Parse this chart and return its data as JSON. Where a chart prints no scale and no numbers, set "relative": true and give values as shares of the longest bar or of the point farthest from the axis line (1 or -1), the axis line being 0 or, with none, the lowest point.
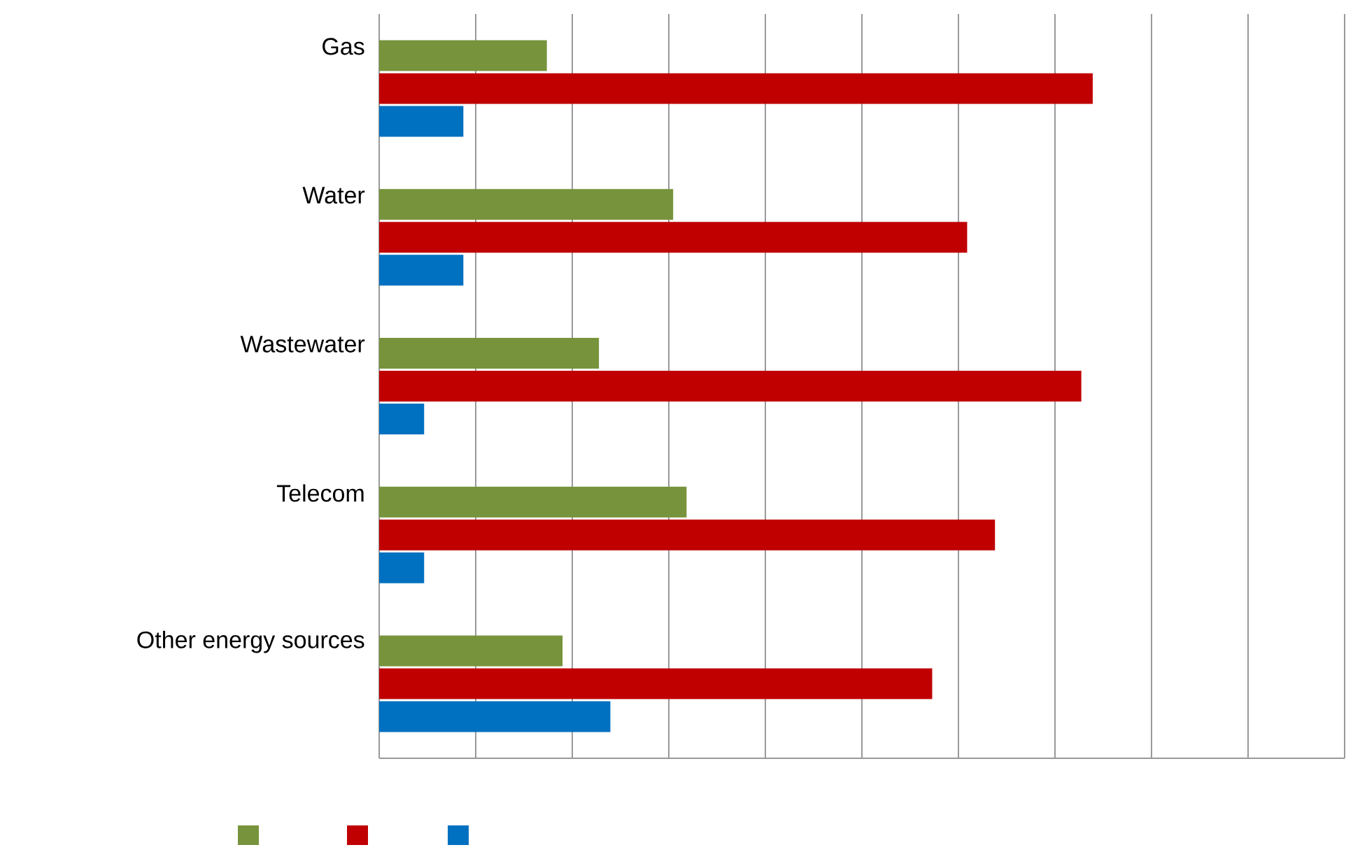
{
  "chart_data": {
    "type": "bar",
    "orientation": "horizontal",
    "relative": true,
    "grid": "x",
    "categories": [
      "Gas",
      "Water",
      "Wastewater",
      "Telecom",
      "Other energy sources"
    ],
    "series": [
      {
        "color": "#77933c",
        "values": [
          0.235,
          0.412,
          0.308,
          0.431,
          0.257
        ]
      },
      {
        "color": "#c00000",
        "values": [
          1.0,
          0.824,
          0.984,
          0.863,
          0.775
        ]
      },
      {
        "color": "#0070c0",
        "values": [
          0.118,
          0.118,
          0.063,
          0.063,
          0.324
        ]
      }
    ]
  }
}
